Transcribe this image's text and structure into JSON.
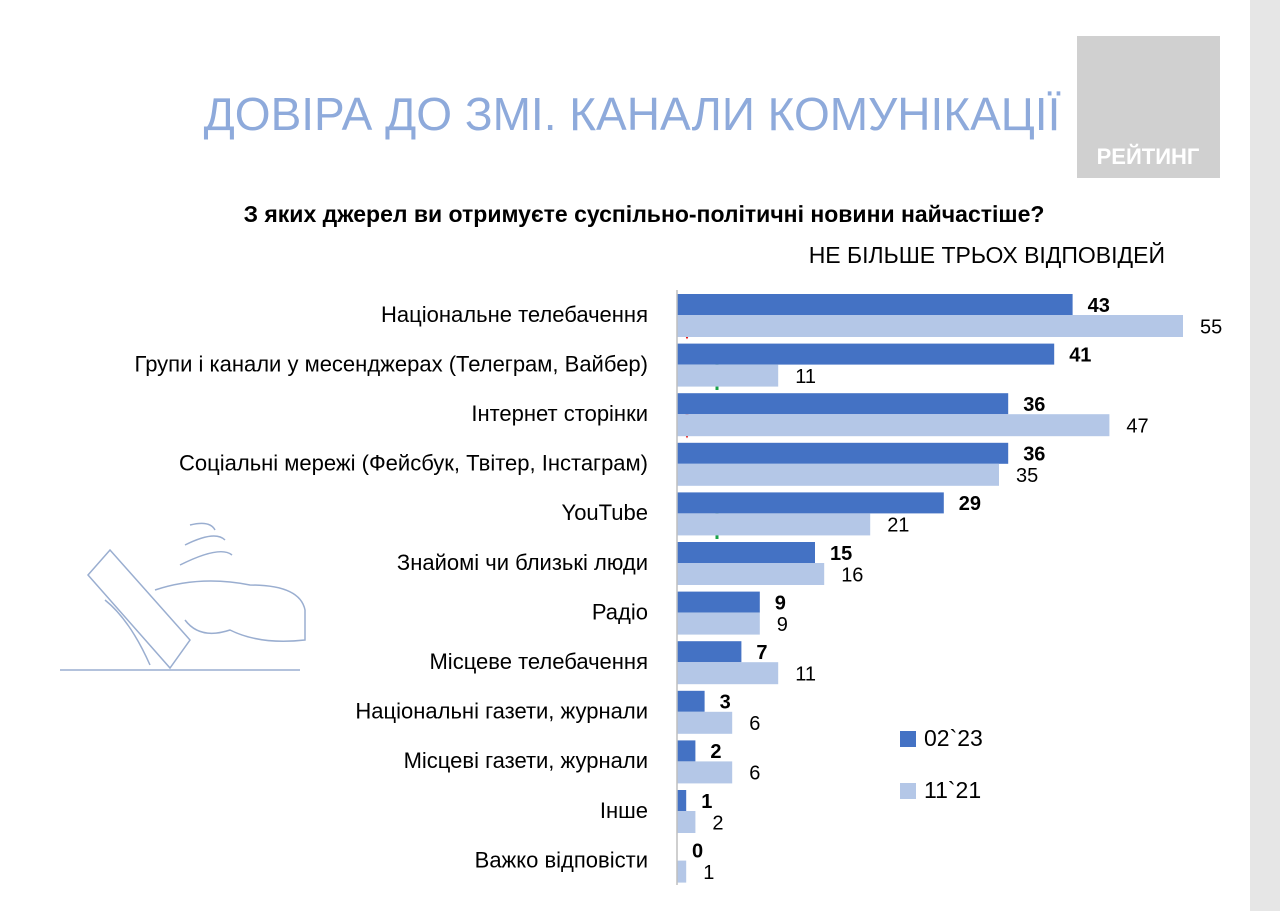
{
  "chart_data": {
    "type": "hbar",
    "title": "ДОВІРА ДО ЗМІ. КАНАЛИ КОМУНІКАЦІЇ",
    "logo": "РЕЙТИНГ",
    "subtitle": "З яких джерел ви отримуєте суспільно-політичні новини найчастіше?",
    "note": "НЕ БІЛЬШЕ ТРЬОХ ВІДПОВІДЕЙ",
    "categories": [
      "Національне телебачення",
      "Групи і канали у месенджерах (Телеграм, Вайбер)",
      "Інтернет сторінки",
      "Соціальні мережі (Фейсбук, Твітер, Інстаграм)",
      "YouTube",
      "Знайомі чи близькі люди",
      "Радіо",
      "Місцеве телебачення",
      "Національні газети, журнали",
      "Місцеві газети, журнали",
      "Інше",
      "Важко відповісти"
    ],
    "series": [
      {
        "name": "02`23",
        "color": "#4472c4",
        "values": [
          43,
          41,
          36,
          36,
          29,
          15,
          9,
          7,
          3,
          2,
          1,
          0
        ]
      },
      {
        "name": "11`21",
        "color": "#b4c7e7",
        "values": [
          55,
          11,
          47,
          35,
          21,
          16,
          9,
          11,
          6,
          6,
          2,
          1
        ]
      }
    ],
    "xlim": [
      0,
      60
    ]
  }
}
